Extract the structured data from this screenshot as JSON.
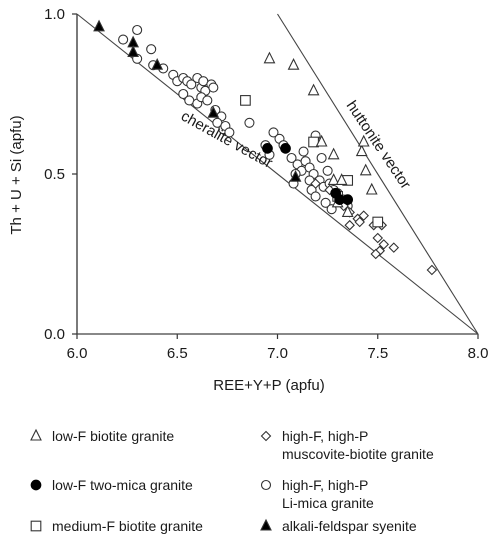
{
  "chart_data": {
    "type": "scatter",
    "xlabel": "REE+Y+P (apfu)",
    "ylabel": "Th + U + Si (apfu)",
    "xlim": [
      6.0,
      8.0
    ],
    "ylim": [
      0.0,
      1.0
    ],
    "x_ticks": [
      "6.0",
      "6.5",
      "7.0",
      "7.5",
      "8.0"
    ],
    "y_ticks": [
      "0.0",
      "0.5",
      "1.0"
    ],
    "grid": false,
    "lines": [
      {
        "name": "cheralite vector",
        "x": [
          6.0,
          8.0
        ],
        "y": [
          1.0,
          0.0
        ]
      },
      {
        "name": "huttonite vector",
        "x": [
          7.0,
          8.0
        ],
        "y": [
          1.0,
          0.0
        ]
      },
      {
        "name": "",
        "x": [
          6.0,
          8.0
        ],
        "y": [
          0.0,
          0.0
        ]
      }
    ],
    "annotations": [
      "cheralite vector",
      "huttonite vector"
    ],
    "series": [
      {
        "name": "low-F biotite granite",
        "marker": "triangle-open",
        "points": [
          [
            6.96,
            0.86
          ],
          [
            7.08,
            0.84
          ],
          [
            7.18,
            0.76
          ],
          [
            7.22,
            0.6
          ],
          [
            7.28,
            0.56
          ],
          [
            7.28,
            0.48
          ],
          [
            7.32,
            0.48
          ],
          [
            7.42,
            0.57
          ],
          [
            7.44,
            0.51
          ],
          [
            7.47,
            0.45
          ],
          [
            7.3,
            0.41
          ],
          [
            7.35,
            0.38
          ],
          [
            7.43,
            0.6
          ]
        ]
      },
      {
        "name": "low-F two-mica granite",
        "marker": "circle-filled",
        "points": [
          [
            6.95,
            0.58
          ],
          [
            7.04,
            0.58
          ],
          [
            7.29,
            0.44
          ],
          [
            7.31,
            0.42
          ],
          [
            7.35,
            0.42
          ]
        ]
      },
      {
        "name": "medium-F biotite granite",
        "marker": "square-open",
        "points": [
          [
            6.84,
            0.73
          ],
          [
            7.18,
            0.6
          ],
          [
            7.35,
            0.48
          ],
          [
            7.5,
            0.35
          ],
          [
            7.3,
            0.43
          ]
        ]
      },
      {
        "name": "alkali-feldspar syenite",
        "marker": "triangle-filled",
        "points": [
          [
            6.11,
            0.96
          ],
          [
            6.28,
            0.91
          ],
          [
            6.28,
            0.88
          ],
          [
            6.4,
            0.84
          ],
          [
            6.68,
            0.69
          ],
          [
            7.09,
            0.49
          ]
        ]
      },
      {
        "name": "high-F, high-P muscovite-biotite granite",
        "marker": "diamond-open",
        "points": [
          [
            7.19,
            0.47
          ],
          [
            7.26,
            0.45
          ],
          [
            7.31,
            0.42
          ],
          [
            7.33,
            0.4
          ],
          [
            7.36,
            0.38
          ],
          [
            7.4,
            0.36
          ],
          [
            7.43,
            0.37
          ],
          [
            7.48,
            0.34
          ],
          [
            7.52,
            0.34
          ],
          [
            7.5,
            0.3
          ],
          [
            7.53,
            0.28
          ],
          [
            7.58,
            0.27
          ],
          [
            7.51,
            0.26
          ],
          [
            7.49,
            0.25
          ],
          [
            7.41,
            0.35
          ],
          [
            7.77,
            0.2
          ],
          [
            7.36,
            0.34
          ]
        ]
      },
      {
        "name": "high-F, high-P Li-mica granite",
        "marker": "circle-open",
        "points": [
          [
            6.3,
            0.95
          ],
          [
            6.23,
            0.92
          ],
          [
            6.37,
            0.89
          ],
          [
            6.3,
            0.86
          ],
          [
            6.38,
            0.84
          ],
          [
            6.43,
            0.83
          ],
          [
            6.48,
            0.81
          ],
          [
            6.5,
            0.79
          ],
          [
            6.53,
            0.8
          ],
          [
            6.55,
            0.79
          ],
          [
            6.57,
            0.78
          ],
          [
            6.6,
            0.8
          ],
          [
            6.62,
            0.77
          ],
          [
            6.63,
            0.79
          ],
          [
            6.64,
            0.76
          ],
          [
            6.67,
            0.78
          ],
          [
            6.68,
            0.77
          ],
          [
            6.53,
            0.75
          ],
          [
            6.56,
            0.73
          ],
          [
            6.6,
            0.72
          ],
          [
            6.62,
            0.74
          ],
          [
            6.65,
            0.73
          ],
          [
            6.69,
            0.7
          ],
          [
            6.72,
            0.68
          ],
          [
            6.7,
            0.66
          ],
          [
            6.73,
            0.64
          ],
          [
            6.74,
            0.65
          ],
          [
            6.76,
            0.63
          ],
          [
            6.86,
            0.66
          ],
          [
            6.94,
            0.59
          ],
          [
            6.96,
            0.56
          ],
          [
            6.98,
            0.63
          ],
          [
            7.01,
            0.61
          ],
          [
            7.03,
            0.59
          ],
          [
            7.07,
            0.55
          ],
          [
            7.1,
            0.53
          ],
          [
            7.12,
            0.51
          ],
          [
            7.14,
            0.54
          ],
          [
            7.16,
            0.52
          ],
          [
            7.18,
            0.5
          ],
          [
            7.21,
            0.48
          ],
          [
            7.23,
            0.46
          ],
          [
            7.17,
            0.45
          ],
          [
            7.19,
            0.43
          ],
          [
            7.25,
            0.51
          ],
          [
            7.26,
            0.47
          ],
          [
            7.28,
            0.45
          ],
          [
            7.3,
            0.44
          ],
          [
            7.13,
            0.57
          ],
          [
            7.19,
            0.62
          ],
          [
            7.22,
            0.55
          ],
          [
            7.33,
            0.42
          ],
          [
            7.35,
            0.4
          ],
          [
            7.24,
            0.41
          ],
          [
            7.27,
            0.39
          ],
          [
            7.09,
            0.5
          ],
          [
            7.08,
            0.47
          ],
          [
            7.16,
            0.48
          ]
        ]
      }
    ],
    "legend": {
      "placement": "bottom",
      "entries": [
        {
          "label": "low-F biotite granite",
          "marker": "triangle-open"
        },
        {
          "label": "high-F, high-P\nmuscovite-biotite granite",
          "marker": "diamond-open"
        },
        {
          "label": "low-F two-mica granite",
          "marker": "circle-filled"
        },
        {
          "label": "high-F, high-P\nLi-mica granite",
          "marker": "circle-open"
        },
        {
          "label": "medium-F biotite granite",
          "marker": "square-open"
        },
        {
          "label": "alkali-feldspar syenite",
          "marker": "triangle-filled"
        }
      ]
    }
  }
}
